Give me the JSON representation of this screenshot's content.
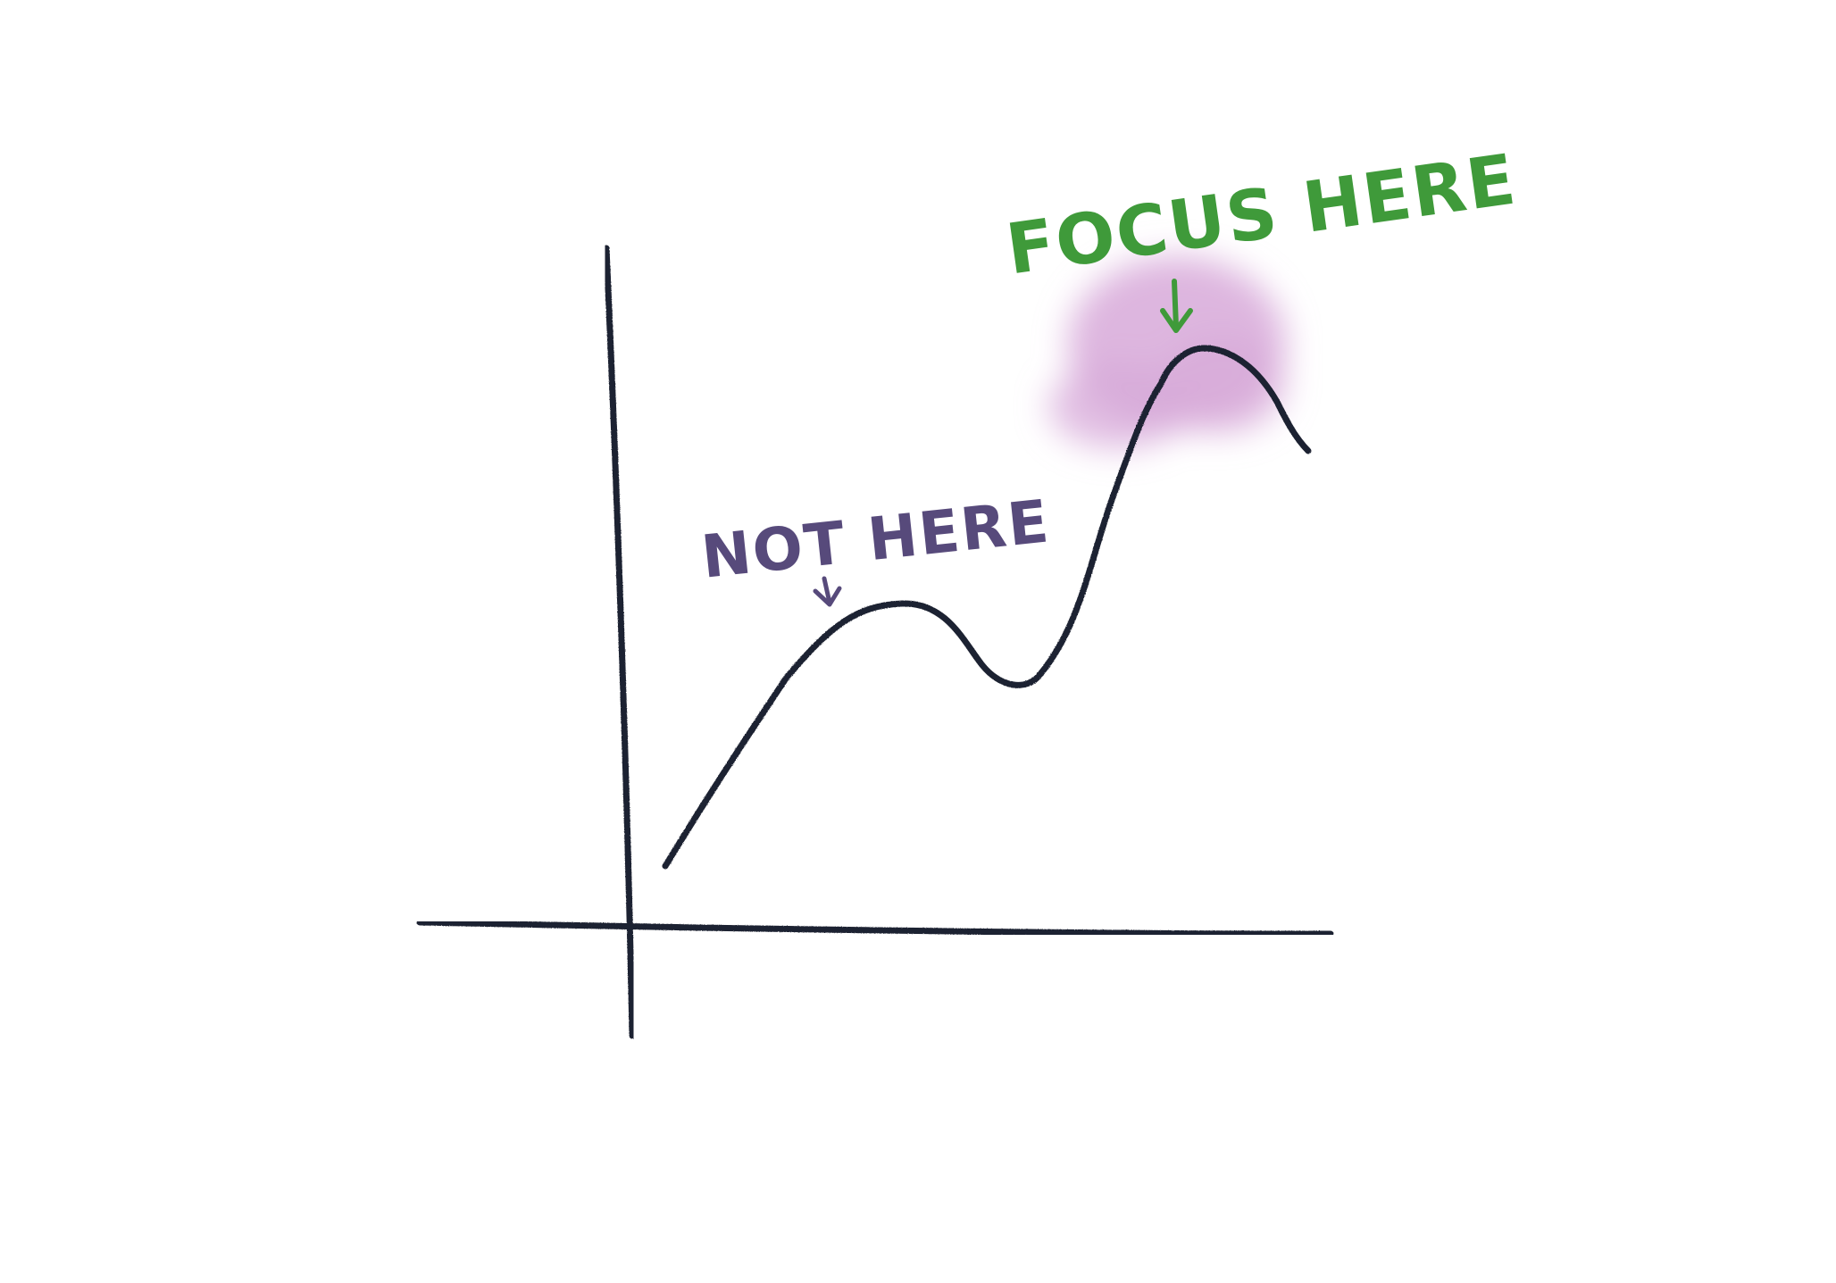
{
  "annotations": {
    "focus_label": "FOCUS HERE",
    "not_label": "NOT HERE"
  },
  "colors": {
    "axes": "#1f2230",
    "curve": "#1f2230",
    "focus_text": "#3f9a3a",
    "not_text": "#574a7b",
    "highlight": "#d7a9d9"
  },
  "icons": {
    "focus_arrow": "down-arrow-icon",
    "not_arrow": "down-arrow-icon"
  }
}
